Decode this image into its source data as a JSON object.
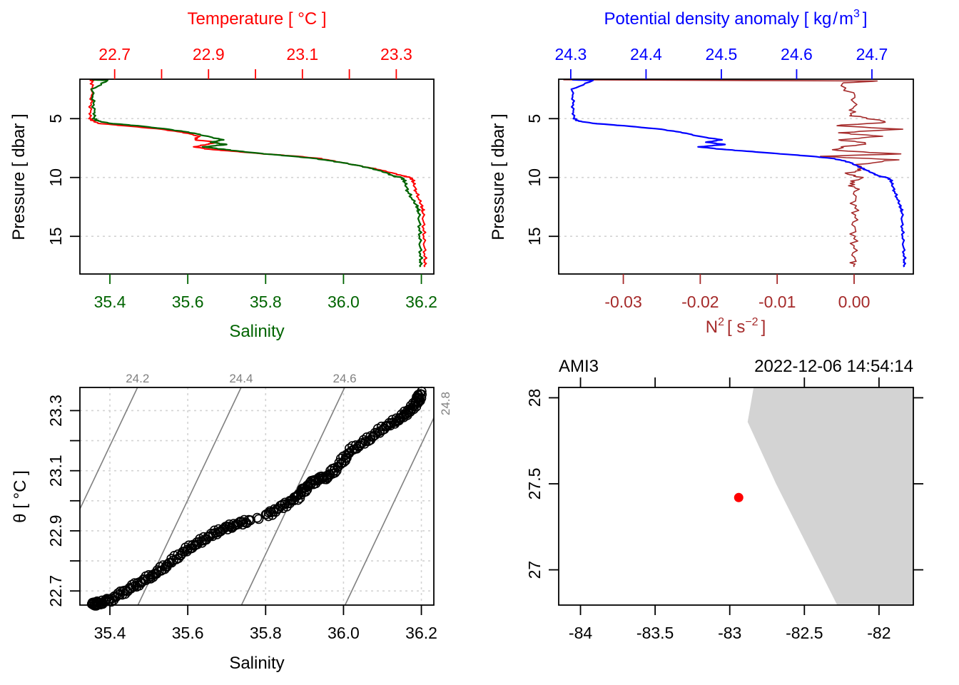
{
  "colors": {
    "temperature": "#ff0000",
    "salinity": "#006400",
    "density": "#0000ff",
    "n2": "#a52a2a",
    "grid": "#d3d3d3",
    "isopycnal": "#808080",
    "land": "#d3d3d3",
    "station": "#ff0000",
    "axis": "#000000"
  },
  "chart_data": [
    {
      "type": "line",
      "panel": "profile-TS",
      "title": "",
      "top_axis": {
        "label": "Temperature [ °C ]",
        "ticks": [
          22.7,
          22.8,
          22.9,
          23.0,
          23.1,
          23.2,
          23.3
        ],
        "tick_labels": [
          "22.7",
          "",
          "22.9",
          "",
          "23.1",
          "",
          "23.3"
        ],
        "range": [
          22.626,
          23.38
        ]
      },
      "bottom_axis": {
        "label": "Salinity",
        "ticks": [
          35.4,
          35.6,
          35.8,
          36.0,
          36.2
        ],
        "tick_labels": [
          "35.4",
          "35.6",
          "35.8",
          "36.0",
          "36.2"
        ],
        "range": [
          35.323,
          36.232
        ]
      },
      "y_axis": {
        "label": "Pressure [ dbar ]",
        "ticks": [
          5,
          10,
          15
        ],
        "tick_labels": [
          "5",
          "10",
          "15"
        ],
        "range": [
          18.2,
          1.65
        ],
        "reversed": true
      },
      "grid": "horizontal-dotted",
      "series": [
        {
          "name": "Temperature",
          "axis": "top",
          "pressure": [
            1.7,
            1.8,
            2.5,
            3.5,
            4.5,
            5.0,
            5.2,
            5.4,
            5.6,
            5.9,
            6.2,
            6.5,
            6.8,
            7.0,
            7.2,
            7.4,
            7.6,
            7.8,
            8.0,
            8.2,
            8.4,
            8.7,
            9.0,
            9.3,
            9.6,
            9.9,
            10.0,
            10.2,
            10.6,
            11.2,
            12.0,
            12.5,
            13.0,
            14.0,
            15.0,
            16.0,
            17.0,
            17.6
          ],
          "values": [
            22.648,
            22.652,
            22.652,
            22.65,
            22.648,
            22.648,
            22.655,
            22.665,
            22.72,
            22.8,
            22.85,
            22.88,
            22.87,
            22.92,
            22.895,
            22.87,
            22.9,
            22.96,
            23.02,
            23.09,
            23.14,
            23.18,
            23.22,
            23.26,
            23.29,
            23.318,
            23.33,
            23.335,
            23.338,
            23.342,
            23.35,
            23.355,
            23.357,
            23.358,
            23.359,
            23.36,
            23.361,
            23.361
          ]
        },
        {
          "name": "Salinity",
          "axis": "bottom",
          "pressure": [
            1.7,
            1.75,
            2.5,
            3.5,
            4.5,
            5.0,
            5.2,
            5.4,
            5.6,
            5.9,
            6.2,
            6.5,
            6.8,
            7.0,
            7.2,
            7.4,
            7.6,
            7.8,
            8.0,
            8.2,
            8.4,
            8.7,
            9.0,
            9.3,
            9.6,
            9.9,
            10.0,
            10.2,
            10.6,
            11.2,
            12.0,
            12.5,
            13.0,
            14.0,
            15.0,
            16.0,
            17.0,
            17.6
          ],
          "values": [
            35.355,
            35.395,
            35.355,
            35.357,
            35.36,
            35.36,
            35.37,
            35.4,
            35.47,
            35.55,
            35.61,
            35.65,
            35.69,
            35.66,
            35.7,
            35.64,
            35.69,
            35.74,
            35.8,
            35.87,
            35.93,
            35.99,
            36.04,
            36.08,
            36.11,
            36.13,
            36.15,
            36.155,
            36.16,
            36.165,
            36.18,
            36.19,
            36.193,
            36.195,
            36.196,
            36.197,
            36.198,
            36.198
          ]
        }
      ]
    },
    {
      "type": "line",
      "panel": "profile-density-N2",
      "top_axis": {
        "label": "Potential density anomaly [ kg/m³ ]",
        "ticks": [
          24.3,
          24.4,
          24.5,
          24.6,
          24.7
        ],
        "tick_labels": [
          "24.3",
          "24.4",
          "24.5",
          "24.6",
          "24.7"
        ],
        "range": [
          24.284,
          24.755
        ]
      },
      "bottom_axis": {
        "label": "N² [ s⁻² ]",
        "ticks": [
          -0.03,
          -0.02,
          -0.01,
          0.0
        ],
        "tick_labels": [
          "-0.03",
          "-0.02",
          "-0.01",
          "0.00"
        ],
        "range": [
          -0.0384,
          0.0077
        ]
      },
      "y_axis": {
        "label": "Pressure [ dbar ]",
        "ticks": [
          5,
          10,
          15
        ],
        "tick_labels": [
          "5",
          "10",
          "15"
        ],
        "range": [
          18.2,
          1.65
        ],
        "reversed": true
      },
      "grid": "horizontal-dotted",
      "series": [
        {
          "name": "Potential density anomaly",
          "axis": "top",
          "pressure": [
            1.7,
            1.75,
            2.5,
            3.5,
            4.5,
            5.0,
            5.2,
            5.4,
            5.6,
            5.9,
            6.2,
            6.5,
            6.8,
            7.0,
            7.2,
            7.4,
            7.6,
            7.8,
            8.0,
            8.2,
            8.4,
            8.7,
            9.0,
            9.3,
            9.6,
            9.9,
            10.0,
            10.2,
            10.6,
            11.2,
            12.0,
            12.5,
            13.0,
            14.0,
            15.0,
            16.0,
            17.0,
            17.6
          ],
          "values": [
            24.302,
            24.33,
            24.302,
            24.303,
            24.303,
            24.305,
            24.31,
            24.33,
            24.37,
            24.42,
            24.45,
            24.47,
            24.5,
            24.48,
            24.505,
            24.47,
            24.5,
            24.54,
            24.58,
            24.62,
            24.65,
            24.67,
            24.68,
            24.69,
            24.7,
            24.71,
            24.72,
            24.725,
            24.727,
            24.73,
            24.735,
            24.738,
            24.74,
            24.74,
            24.741,
            24.742,
            24.743,
            24.743
          ]
        },
        {
          "name": "N2",
          "axis": "bottom",
          "pressure": [
            1.7,
            1.8,
            2.0,
            3.0,
            4.0,
            4.7,
            5.0,
            5.3,
            5.6,
            5.9,
            6.2,
            6.5,
            6.8,
            7.1,
            7.4,
            7.7,
            8.0,
            8.2,
            8.5,
            8.9,
            9.3,
            9.7,
            10.0,
            10.5,
            11.0,
            12.0,
            13.0,
            14.0,
            15.0,
            16.0,
            17.0,
            17.6
          ],
          "values": [
            -0.0378,
            0.003,
            -0.002,
            0.0,
            0.0,
            -0.0005,
            0.002,
            0.0045,
            -0.0025,
            0.006,
            -0.002,
            0.0035,
            -0.002,
            0.002,
            -0.0015,
            -0.0025,
            0.006,
            -0.0045,
            0.0055,
            0.0005,
            0.001,
            -0.001,
            0.001,
            -0.0005,
            0.0003,
            0.0,
            0.0002,
            0.0,
            0.0,
            0.0,
            0.0,
            0.0
          ]
        }
      ]
    },
    {
      "type": "scatter",
      "panel": "TS-diagram",
      "xlabel": "Salinity",
      "ylabel": "θ [ °C ]",
      "x_ticks": [
        35.4,
        35.6,
        35.8,
        36.0,
        36.2
      ],
      "x_tick_labels": [
        "35.4",
        "35.6",
        "35.8",
        "36.0",
        "36.2"
      ],
      "y_ticks": [
        22.7,
        22.8,
        22.9,
        23.0,
        23.1,
        23.2,
        23.3
      ],
      "y_tick_labels": [
        "22.7",
        "",
        "22.9",
        "",
        "23.1",
        "",
        "23.3"
      ],
      "xlim": [
        35.323,
        36.232
      ],
      "ylim": [
        22.653,
        23.377
      ],
      "grid": "dotted",
      "isopycnals": [
        {
          "label": "24.2",
          "value": 24.2
        },
        {
          "label": "24.4",
          "value": 24.4
        },
        {
          "label": "24.6",
          "value": 24.6
        },
        {
          "label": "24.8",
          "value": 24.8
        }
      ],
      "points_trace": {
        "salinity": [
          35.355,
          35.37,
          35.4,
          35.44,
          35.48,
          35.52,
          35.56,
          35.6,
          35.64,
          35.68,
          35.72,
          35.76,
          35.8,
          35.84,
          35.88,
          35.9,
          35.93,
          35.96,
          35.99,
          36.02,
          36.06,
          36.1,
          36.14,
          36.17,
          36.19,
          36.198
        ],
        "theta": [
          22.655,
          22.66,
          22.67,
          22.7,
          22.73,
          22.76,
          22.8,
          22.84,
          22.87,
          22.9,
          22.92,
          22.935,
          22.95,
          22.98,
          23.01,
          23.04,
          23.07,
          23.08,
          23.12,
          23.17,
          23.2,
          23.24,
          23.27,
          23.3,
          23.33,
          23.36
        ]
      }
    },
    {
      "type": "map",
      "panel": "station-map",
      "title_left": "AMI3",
      "title_right": "2022-12-06 14:54:14",
      "x_ticks": [
        -84,
        -83.5,
        -83,
        -82.5,
        -82
      ],
      "x_tick_labels": [
        "-84",
        "-83.5",
        "-83",
        "-82.5",
        "-82"
      ],
      "y_ticks": [
        27,
        27.5,
        28
      ],
      "y_tick_labels": [
        "27",
        "27.5",
        "28"
      ],
      "xlim": [
        -84.146,
        -81.77
      ],
      "ylim": [
        26.795,
        28.06
      ],
      "station": {
        "lon": -82.94,
        "lat": 27.42
      },
      "coastline": {
        "lon": [
          -82.84,
          -82.88,
          -82.69,
          -82.28
        ],
        "lat": [
          28.06,
          27.86,
          27.5,
          26.795
        ]
      }
    }
  ]
}
